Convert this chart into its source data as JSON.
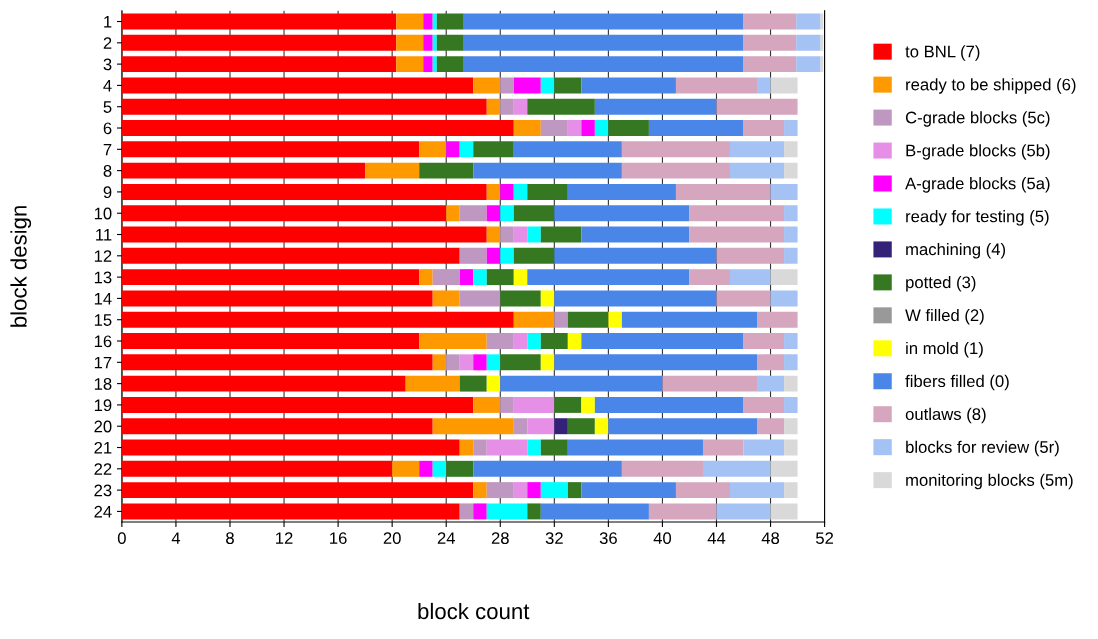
{
  "chart_data": {
    "type": "bar",
    "orientation": "horizontal",
    "stacked": true,
    "xlabel": "block count",
    "ylabel": "block design",
    "categories": [
      "1",
      "2",
      "3",
      "4",
      "5",
      "6",
      "7",
      "8",
      "9",
      "10",
      "11",
      "12",
      "13",
      "14",
      "15",
      "16",
      "17",
      "18",
      "19",
      "20",
      "21",
      "22",
      "23",
      "24"
    ],
    "xlim": [
      0,
      52
    ],
    "xticks": [
      0,
      4,
      8,
      12,
      16,
      20,
      24,
      28,
      32,
      36,
      40,
      44,
      48,
      52
    ],
    "grid": "x",
    "legend": "right",
    "series": [
      {
        "name": "to BNL (7)",
        "color": "#ff0000",
        "values": [
          20.3,
          20.3,
          20.3,
          26,
          27,
          29,
          22,
          18,
          27,
          24,
          27,
          25,
          22,
          23,
          29,
          22,
          23,
          21,
          26,
          23,
          25,
          20,
          26,
          25
        ]
      },
      {
        "name": "ready to be shipped (6)",
        "color": "#ff9900",
        "values": [
          2,
          2,
          2,
          2,
          1,
          2,
          2,
          4,
          1,
          1,
          1,
          0,
          1,
          2,
          3,
          5,
          1,
          4,
          2,
          6,
          1,
          2,
          1,
          0
        ]
      },
      {
        "name": "C-grade blocks (5c)",
        "color": "#bf98c2",
        "values": [
          0,
          0,
          0,
          1,
          1,
          2,
          0,
          0,
          0,
          2,
          1,
          2,
          2,
          3,
          1,
          2,
          1,
          0,
          1,
          1,
          1,
          0,
          2,
          1
        ]
      },
      {
        "name": "B-grade blocks (5b)",
        "color": "#e68fe6",
        "values": [
          0,
          0,
          0,
          0,
          1,
          1,
          0,
          0,
          0,
          0,
          1,
          0,
          0,
          0,
          0,
          1,
          1,
          0,
          3,
          2,
          3,
          0,
          1,
          0
        ]
      },
      {
        "name": "A-grade blocks (5a)",
        "color": "#ff00ff",
        "values": [
          0.7,
          0.7,
          0.7,
          2,
          0,
          1,
          1,
          0,
          1,
          1,
          0,
          1,
          1,
          0,
          0,
          0,
          1,
          0,
          0,
          0,
          0,
          1,
          1,
          1
        ]
      },
      {
        "name": "ready for testing (5)",
        "color": "#00ffff",
        "values": [
          0.3,
          0.3,
          0.3,
          1,
          0,
          1,
          1,
          0,
          1,
          1,
          1,
          1,
          1,
          0,
          0,
          1,
          1,
          0,
          0,
          0,
          1,
          1,
          2,
          3
        ]
      },
      {
        "name": "machining (4)",
        "color": "#332277",
        "values": [
          0,
          0,
          0,
          0,
          0,
          0,
          0,
          0,
          0,
          0,
          0,
          0,
          0,
          0,
          0,
          0,
          0,
          0,
          0,
          1,
          0,
          0,
          0,
          0
        ]
      },
      {
        "name": "potted (3)",
        "color": "#367821",
        "values": [
          2,
          2,
          2,
          2,
          5,
          3,
          3,
          4,
          3,
          3,
          3,
          3,
          2,
          3,
          3,
          2,
          3,
          2,
          2,
          2,
          2,
          2,
          1,
          1
        ]
      },
      {
        "name": "W filled (2)",
        "color": "#999999",
        "values": [
          0,
          0,
          0,
          0,
          0,
          0,
          0,
          0,
          0,
          0,
          0,
          0,
          0,
          0,
          0,
          0,
          0,
          0,
          0,
          0,
          0,
          0,
          0,
          0
        ]
      },
      {
        "name": "in mold (1)",
        "color": "#ffff00",
        "values": [
          0,
          0,
          0,
          0,
          0,
          0,
          0,
          0,
          0,
          0,
          0,
          0,
          1,
          1,
          1,
          1,
          1,
          1,
          1,
          1,
          0,
          0,
          0,
          0
        ]
      },
      {
        "name": "fibers filled (0)",
        "color": "#4a86e8",
        "values": [
          20.7,
          20.7,
          20.7,
          7,
          9,
          7,
          8,
          11,
          8,
          10,
          8,
          12,
          12,
          12,
          10,
          12,
          15,
          12,
          11,
          11,
          10,
          11,
          7,
          8
        ]
      },
      {
        "name": "outlaws (8)",
        "color": "#d5a6bd",
        "values": [
          3.9,
          3.9,
          3.9,
          6,
          6,
          3,
          8,
          8,
          7,
          7,
          7,
          5,
          3,
          4,
          3,
          3,
          2,
          7,
          3,
          2,
          3,
          6,
          4,
          5
        ]
      },
      {
        "name": "blocks for review (5r)",
        "color": "#a4c2f4",
        "values": [
          1.8,
          1.8,
          1.8,
          1,
          0,
          1,
          4,
          4,
          2,
          1,
          1,
          1,
          3,
          2,
          0,
          1,
          1,
          2,
          1,
          0,
          3,
          5,
          4,
          4
        ]
      },
      {
        "name": "monitoring blocks (5m)",
        "color": "#d9d9d9",
        "values": [
          0.2,
          0.2,
          0.2,
          2,
          0,
          0,
          1,
          1,
          0,
          0,
          0,
          0,
          2,
          0,
          0,
          0,
          0,
          1,
          0,
          1,
          1,
          2,
          1,
          2
        ]
      }
    ]
  }
}
